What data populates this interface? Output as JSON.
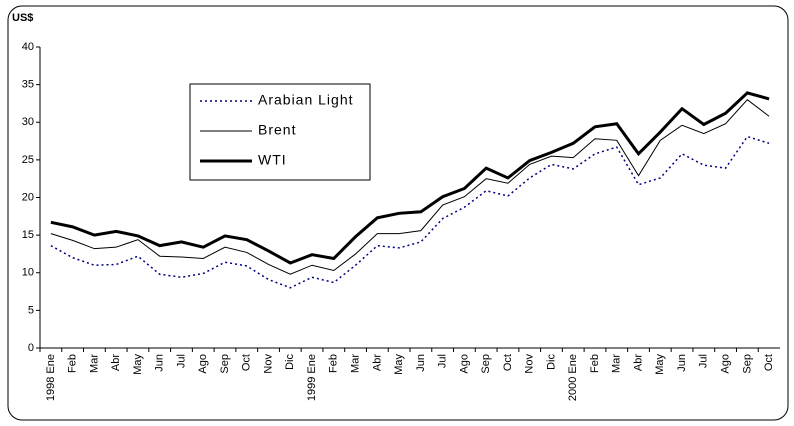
{
  "chart_data": {
    "type": "line",
    "y_label": "US$",
    "categories": [
      "1998 Ene",
      "Feb",
      "Mar",
      "Abr",
      "May",
      "Jun",
      "Jul",
      "Ago",
      "Sep",
      "Oct",
      "Nov",
      "Dic",
      "1999 Ene",
      "Feb",
      "Mar",
      "Abr",
      "May",
      "Jun",
      "Jul",
      "Ago",
      "Sep",
      "Oct",
      "Nov",
      "Dic",
      "2000 Ene",
      "Feb",
      "Mar",
      "Abr",
      "May",
      "Jun",
      "Jul",
      "Ago",
      "Sep",
      "Oct"
    ],
    "series": [
      {
        "name": "Arabian Light",
        "color": "#000080",
        "linestyle": "dotted",
        "linewidth": 1.5,
        "values": [
          13.6,
          12.0,
          11.0,
          11.1,
          12.2,
          9.8,
          9.4,
          9.9,
          11.4,
          10.9,
          9.1,
          8.0,
          9.4,
          8.7,
          11.0,
          13.6,
          13.3,
          14.1,
          17.2,
          18.7,
          20.9,
          20.2,
          22.6,
          24.4,
          23.8,
          25.8,
          26.7,
          21.7,
          22.6,
          25.8,
          24.3,
          23.9,
          28.1,
          27.2
        ]
      },
      {
        "name": "Brent",
        "color": "#000000",
        "linestyle": "solid",
        "linewidth": 1,
        "values": [
          15.2,
          14.3,
          13.2,
          13.4,
          14.4,
          12.2,
          12.1,
          11.9,
          13.4,
          12.7,
          11.1,
          9.8,
          11.0,
          10.3,
          12.5,
          15.2,
          15.2,
          15.6,
          19.0,
          20.1,
          22.5,
          21.9,
          24.4,
          25.5,
          25.3,
          27.8,
          27.6,
          22.9,
          27.6,
          29.6,
          28.5,
          29.8,
          33.0,
          30.8
        ]
      },
      {
        "name": "WTI",
        "color": "#000000",
        "linestyle": "solid",
        "linewidth": 3,
        "values": [
          16.7,
          16.1,
          15.0,
          15.5,
          14.9,
          13.6,
          14.1,
          13.4,
          14.9,
          14.4,
          12.9,
          11.3,
          12.4,
          11.9,
          14.8,
          17.3,
          17.9,
          18.1,
          20.1,
          21.2,
          23.9,
          22.6,
          24.9,
          26.0,
          27.2,
          29.4,
          29.8,
          25.8,
          28.7,
          31.8,
          29.7,
          31.2,
          33.9,
          33.1
        ]
      }
    ],
    "ylim": [
      0,
      40
    ],
    "yticks": [
      0,
      5,
      10,
      15,
      20,
      25,
      30,
      35,
      40
    ],
    "legend": "upper left"
  }
}
